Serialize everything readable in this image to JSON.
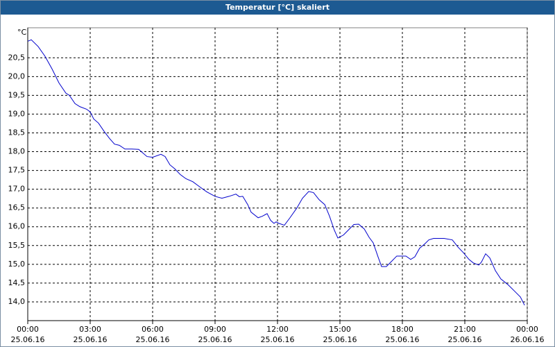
{
  "chart_data": {
    "type": "line",
    "title": "Temperatur [°C] skaliert",
    "y_label": "°C",
    "x": [
      0,
      0.17,
      0.5,
      0.83,
      1.17,
      1.5,
      1.83,
      2.0,
      2.27,
      2.5,
      2.83,
      3.0,
      3.17,
      3.4,
      3.67,
      3.93,
      4.17,
      4.4,
      4.67,
      5.0,
      5.33,
      5.5,
      5.73,
      6.0,
      6.4,
      6.6,
      6.83,
      7.07,
      7.33,
      7.6,
      7.93,
      8.27,
      8.6,
      9.0,
      9.33,
      9.67,
      10.0,
      10.17,
      10.33,
      10.57,
      10.73,
      11.07,
      11.27,
      11.5,
      11.67,
      11.83,
      11.93,
      12.07,
      12.33,
      12.6,
      12.93,
      13.2,
      13.5,
      13.73,
      14.0,
      14.27,
      14.5,
      14.73,
      14.9,
      15.17,
      15.4,
      15.67,
      15.9,
      16.17,
      16.4,
      16.6,
      16.83,
      17.0,
      17.23,
      17.5,
      17.73,
      18.0,
      18.17,
      18.4,
      18.6,
      18.83,
      19.07,
      19.27,
      19.5,
      20.0,
      20.4,
      20.67,
      20.93,
      21.2,
      21.4,
      21.67,
      21.8,
      22.0,
      22.2,
      22.47,
      22.73,
      23.07,
      23.4,
      23.67,
      23.87
    ],
    "series": [
      {
        "name": "Temperatur",
        "color": "#0000cc",
        "values": [
          20.94,
          20.98,
          20.8,
          20.54,
          20.2,
          19.83,
          19.56,
          19.5,
          19.28,
          19.2,
          19.13,
          19.06,
          18.87,
          18.76,
          18.54,
          18.35,
          18.2,
          18.17,
          18.07,
          18.07,
          18.06,
          17.98,
          17.87,
          17.85,
          17.93,
          17.87,
          17.65,
          17.54,
          17.39,
          17.28,
          17.2,
          17.06,
          16.93,
          16.81,
          16.76,
          16.81,
          16.87,
          16.8,
          16.81,
          16.59,
          16.39,
          16.24,
          16.28,
          16.35,
          16.17,
          16.09,
          16.13,
          16.09,
          16.04,
          16.24,
          16.5,
          16.76,
          16.94,
          16.91,
          16.72,
          16.59,
          16.28,
          15.91,
          15.7,
          15.78,
          15.91,
          16.06,
          16.07,
          15.94,
          15.72,
          15.57,
          15.2,
          14.94,
          14.94,
          15.09,
          15.22,
          15.22,
          15.22,
          15.13,
          15.2,
          15.43,
          15.54,
          15.65,
          15.69,
          15.69,
          15.65,
          15.46,
          15.31,
          15.13,
          15.04,
          14.98,
          15.06,
          15.28,
          15.17,
          14.83,
          14.61,
          14.46,
          14.28,
          14.13,
          13.91
        ]
      }
    ],
    "xlim": [
      0,
      24
    ],
    "xticks": [
      {
        "value": 0,
        "label": "00:00"
      },
      {
        "value": 3,
        "label": "03:00"
      },
      {
        "value": 6,
        "label": "06:00"
      },
      {
        "value": 9,
        "label": "09:00"
      },
      {
        "value": 12,
        "label": "12:00"
      },
      {
        "value": 15,
        "label": "15:00"
      },
      {
        "value": 18,
        "label": "18:00"
      },
      {
        "value": 21,
        "label": "21:00"
      },
      {
        "value": 24,
        "label": "00:00"
      }
    ],
    "x_tick_dates": [
      "25.06.16",
      "25.06.16",
      "25.06.16",
      "25.06.16",
      "25.06.16",
      "25.06.16",
      "25.06.16",
      "25.06.16",
      "26.06.16"
    ],
    "ylim": [
      13.5,
      21.3
    ],
    "yticks": [
      {
        "value": 14.0,
        "label": "14,0"
      },
      {
        "value": 14.5,
        "label": "14,5"
      },
      {
        "value": 15.0,
        "label": "15,0"
      },
      {
        "value": 15.5,
        "label": "15,5"
      },
      {
        "value": 16.0,
        "label": "16,0"
      },
      {
        "value": 16.5,
        "label": "16,5"
      },
      {
        "value": 17.0,
        "label": "17,0"
      },
      {
        "value": 17.5,
        "label": "17,5"
      },
      {
        "value": 18.0,
        "label": "18,0"
      },
      {
        "value": 18.5,
        "label": "18,5"
      },
      {
        "value": 19.0,
        "label": "19,0"
      },
      {
        "value": 19.5,
        "label": "19,5"
      },
      {
        "value": 20.0,
        "label": "20,0"
      },
      {
        "value": 20.5,
        "label": "20,5"
      }
    ],
    "grid": true
  }
}
